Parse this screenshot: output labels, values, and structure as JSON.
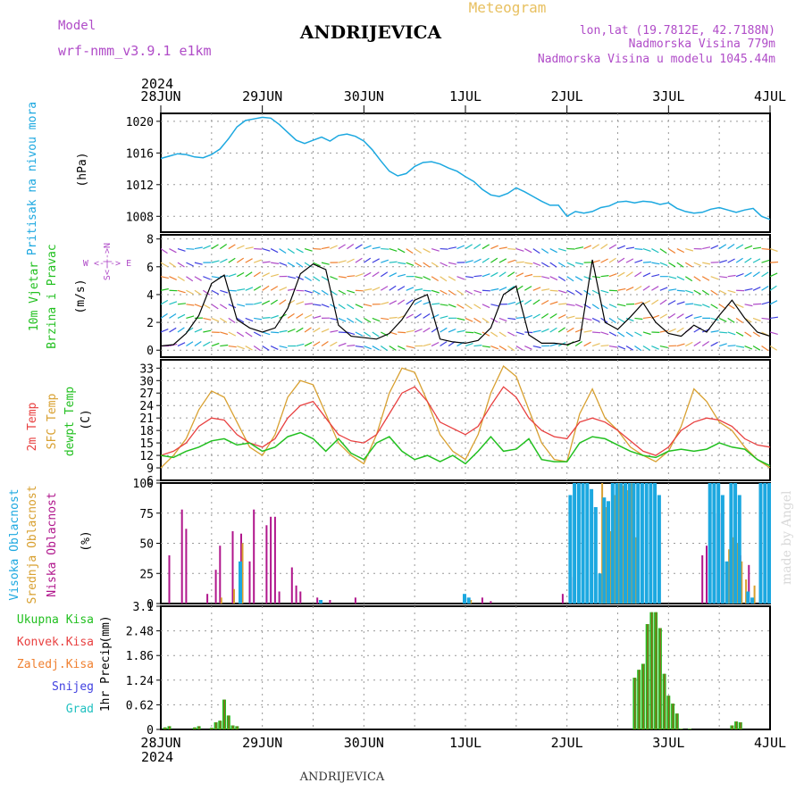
{
  "header": {
    "model_label": "Model",
    "model_name": "wrf-nmm_v3.9.1 e1km",
    "station": "ANDRIJEVICA",
    "meteogram": "Meteogram",
    "coords": "lon,lat (19.7812E, 42.7188N)",
    "elevation": "Nadmorska Visina 779m",
    "model_elevation": "Nadmorska Visina u modelu 1045.44m",
    "year_top": "2024",
    "year_bottom": "2024",
    "footer_station": "ANDRIJEVICA",
    "credit": "made by Angel"
  },
  "colors": {
    "pressure": "#1ca8e0",
    "wind_green": "#22c020",
    "temp2m": "#e84040",
    "sfc": "#d8a030",
    "dewpt": "#22c020",
    "cloud_high": "#1ca8e0",
    "cloud_mid": "#d8a030",
    "cloud_low": "#b0168c",
    "purple": "#b04cc8",
    "precip_total": "#22c020",
    "precip_conv": "#e84040",
    "precip_frz": "#f08030",
    "precip_snow": "#4040e0",
    "precip_grad": "#20c0c0"
  },
  "time_axis": {
    "start": "2024-06-28T00:00",
    "end": "2024-07-04T00:00",
    "ticks": [
      "28JUN",
      "29JUN",
      "30JUN",
      "1JUL",
      "2JUL",
      "3JUL",
      "4JUL"
    ]
  },
  "chart_data": [
    {
      "type": "line",
      "ylabel": "Pritisak na nivou mora",
      "units": "(hPa)",
      "yticks": [
        1008,
        1012,
        1016,
        1020
      ],
      "ylim": [
        1006,
        1021
      ],
      "series": [
        {
          "x": [
            0,
            2,
            4,
            6,
            8,
            10,
            12,
            14,
            16,
            18,
            20,
            22,
            24,
            26,
            28,
            30,
            32,
            34,
            36,
            38,
            40,
            42,
            44,
            46,
            48,
            50,
            52,
            54,
            56,
            58,
            60,
            62,
            64,
            66,
            68,
            70,
            72,
            74,
            76,
            78,
            80,
            82,
            84,
            86,
            88,
            90,
            92,
            94,
            96,
            98,
            100,
            102,
            104,
            106,
            108,
            110,
            112,
            114,
            116,
            118,
            120,
            122,
            124,
            126,
            128,
            130,
            132,
            134,
            136,
            138,
            140,
            142,
            144
          ],
          "values": [
            1015.3,
            1015.6,
            1015.9,
            1015.8,
            1015.5,
            1015.4,
            1015.8,
            1016.5,
            1017.8,
            1019.3,
            1020.1,
            1020.3,
            1020.5,
            1020.4,
            1019.6,
            1018.6,
            1017.6,
            1017.2,
            1017.6,
            1018.0,
            1017.5,
            1018.2,
            1018.4,
            1018.1,
            1017.5,
            1016.4,
            1015.0,
            1013.7,
            1013.1,
            1013.4,
            1014.3,
            1014.8,
            1014.9,
            1014.6,
            1014.1,
            1013.7,
            1013.0,
            1012.4,
            1011.4,
            1010.7,
            1010.5,
            1010.9,
            1011.6,
            1011.1,
            1010.5,
            1009.9,
            1009.4,
            1009.4,
            1008.0,
            1008.6,
            1008.4,
            1008.6,
            1009.1,
            1009.3,
            1009.8,
            1009.9,
            1009.7,
            1009.9,
            1009.8,
            1009.5,
            1009.7,
            1009.0,
            1008.6,
            1008.4,
            1008.5,
            1008.9,
            1009.1,
            1008.8,
            1008.5,
            1008.8,
            1009.0,
            1008.0,
            1007.6
          ]
        }
      ]
    },
    {
      "type": "line",
      "ylabel": "10m Vjetar",
      "ylabel2": "Brzina i Pravac",
      "units": "(m/s)",
      "compass": "W <-|-> E",
      "compass_ns": "S<-|->N",
      "yticks": [
        0,
        2,
        4,
        6,
        8
      ],
      "ylim": [
        -0.5,
        8.3
      ],
      "series": [
        {
          "x": [
            0,
            3,
            6,
            9,
            12,
            15,
            18,
            21,
            24,
            27,
            30,
            33,
            36,
            39,
            42,
            45,
            48,
            51,
            54,
            57,
            60,
            63,
            66,
            69,
            72,
            75,
            78,
            81,
            84,
            87,
            90,
            93,
            96,
            99,
            102,
            105,
            108,
            111,
            114,
            117,
            120,
            123,
            126,
            129,
            132,
            135,
            138,
            141,
            144
          ],
          "values": [
            0.3,
            0.4,
            1.2,
            2.5,
            4.8,
            5.4,
            2.2,
            1.6,
            1.3,
            1.6,
            3.0,
            5.5,
            6.2,
            5.8,
            1.8,
            1.0,
            0.9,
            0.8,
            1.2,
            2.2,
            3.6,
            4.0,
            0.8,
            0.6,
            0.5,
            0.7,
            1.6,
            4.0,
            4.6,
            1.1,
            0.5,
            0.5,
            0.4,
            0.7,
            6.5,
            2.0,
            1.5,
            2.4,
            3.4,
            2.0,
            1.2,
            1.0,
            1.8,
            1.3,
            2.5,
            3.6,
            2.3,
            1.3,
            1.0
          ]
        }
      ]
    },
    {
      "type": "line",
      "ylabel": "2m Temp",
      "ylabel2": "SFC Temp",
      "ylabel3": "dewpt Temp",
      "units": "(C)",
      "yticks": [
        6,
        9,
        12,
        15,
        18,
        21,
        24,
        27,
        30,
        33
      ],
      "ylim": [
        6,
        35
      ],
      "series": [
        {
          "name": "2m Temp",
          "x": [
            0,
            3,
            6,
            9,
            12,
            15,
            18,
            21,
            24,
            27,
            30,
            33,
            36,
            39,
            42,
            45,
            48,
            51,
            54,
            57,
            60,
            63,
            66,
            69,
            72,
            75,
            78,
            81,
            84,
            87,
            90,
            93,
            96,
            99,
            102,
            105,
            108,
            111,
            114,
            117,
            120,
            123,
            126,
            129,
            132,
            135,
            138,
            141,
            144
          ],
          "values": [
            12,
            13,
            15,
            19,
            21,
            20.5,
            17,
            15,
            14,
            16,
            21,
            24,
            25,
            21,
            17,
            15.5,
            15,
            17,
            22,
            27,
            28.5,
            25,
            20,
            18.5,
            17,
            19,
            24,
            28.5,
            26,
            21,
            18,
            16.5,
            16,
            20,
            21,
            20,
            18,
            15.5,
            13,
            12,
            14,
            18,
            20,
            21,
            20.5,
            19,
            16,
            14.5,
            14
          ]
        },
        {
          "name": "SFC Temp",
          "x": [
            0,
            3,
            6,
            9,
            12,
            15,
            18,
            21,
            24,
            27,
            30,
            33,
            36,
            39,
            42,
            45,
            48,
            51,
            54,
            57,
            60,
            63,
            66,
            69,
            72,
            75,
            78,
            81,
            84,
            87,
            90,
            93,
            96,
            99,
            102,
            105,
            108,
            111,
            114,
            117,
            120,
            123,
            126,
            129,
            132,
            135,
            138,
            141,
            144
          ],
          "values": [
            9,
            12,
            16,
            23,
            27.5,
            26,
            20,
            14,
            12,
            17,
            26,
            30,
            29,
            22,
            15,
            12,
            10,
            17,
            27,
            33,
            32,
            25,
            17,
            13,
            11,
            17,
            27,
            33.5,
            31,
            23,
            15,
            11,
            10.5,
            22,
            28,
            21,
            18,
            14,
            12,
            10.5,
            13,
            19,
            28,
            25,
            20,
            18,
            14,
            11,
            9
          ]
        },
        {
          "name": "dewpt Temp",
          "x": [
            0,
            3,
            6,
            9,
            12,
            15,
            18,
            21,
            24,
            27,
            30,
            33,
            36,
            39,
            42,
            45,
            48,
            51,
            54,
            57,
            60,
            63,
            66,
            69,
            72,
            75,
            78,
            81,
            84,
            87,
            90,
            93,
            96,
            99,
            102,
            105,
            108,
            111,
            114,
            117,
            120,
            123,
            126,
            129,
            132,
            135,
            138,
            141,
            144
          ],
          "values": [
            12,
            11.5,
            13,
            14,
            15.5,
            16,
            14.5,
            15,
            13,
            14,
            16.5,
            17.5,
            16,
            13,
            16,
            12.5,
            11,
            15,
            16.5,
            13,
            11,
            12,
            10.5,
            12,
            10,
            13,
            16.5,
            13,
            13.5,
            16,
            11,
            10.5,
            10.5,
            15,
            16.5,
            16,
            14.5,
            13,
            12,
            11.5,
            13,
            13.5,
            13,
            13.5,
            15,
            14,
            13.5,
            11,
            9.5
          ]
        }
      ]
    },
    {
      "type": "bar",
      "ylabel": "Visoka Oblacnost",
      "ylabel2": "Srednja Oblacnost",
      "ylabel3": "Niska Oblacnost",
      "units": "(%)",
      "yticks": [
        0,
        25,
        50,
        75,
        100
      ],
      "ylim": [
        0,
        100
      ],
      "series": [
        {
          "name": "Niska Oblacnost",
          "x": [
            2,
            5,
            6,
            11,
            13,
            14,
            17,
            19,
            21,
            22,
            25,
            26,
            27,
            28,
            31,
            32,
            33,
            37,
            40,
            46,
            76,
            78,
            95,
            97,
            128,
            129,
            131,
            132,
            135,
            137,
            139,
            142
          ],
          "values": [
            40,
            78,
            62,
            8,
            28,
            48,
            60,
            58,
            35,
            78,
            65,
            72,
            72,
            10,
            30,
            15,
            10,
            5,
            3,
            5,
            5,
            2,
            8,
            22,
            40,
            48,
            75,
            75,
            55,
            40,
            32,
            8
          ]
        },
        {
          "name": "Srednja Oblacnost",
          "x": [
            14,
            17,
            19,
            73,
            104,
            105,
            106,
            107,
            108,
            109,
            110,
            111,
            112,
            134,
            135,
            136,
            137,
            138,
            140
          ],
          "values": [
            5,
            12,
            50,
            3,
            100,
            80,
            60,
            90,
            100,
            98,
            94,
            100,
            55,
            45,
            55,
            50,
            35,
            20,
            15
          ]
        },
        {
          "name": "Visoka Oblacnost",
          "x": [
            19,
            38,
            72,
            73,
            97,
            98,
            99,
            100,
            101,
            102,
            103,
            104,
            105,
            106,
            107,
            108,
            109,
            110,
            111,
            112,
            113,
            114,
            115,
            116,
            117,
            118,
            130,
            131,
            132,
            133,
            134,
            135,
            136,
            137,
            139,
            140,
            142,
            143,
            144
          ],
          "values": [
            35,
            3,
            8,
            5,
            90,
            100,
            100,
            100,
            100,
            95,
            80,
            25,
            88,
            85,
            100,
            100,
            100,
            100,
            100,
            100,
            100,
            100,
            100,
            100,
            100,
            90,
            100,
            100,
            100,
            90,
            35,
            100,
            100,
            90,
            10,
            5,
            100,
            100,
            100
          ]
        }
      ]
    },
    {
      "type": "bar",
      "ylabel": "1hr Precip",
      "units": "(mm)",
      "yticks": [
        0,
        0.62,
        1.24,
        1.86,
        2.48,
        3.1
      ],
      "ylim": [
        0,
        3.1
      ],
      "legend": [
        "Ukupna Kisa",
        "Konvek.Kisa",
        "Zaledj.Kisa",
        "Snijeg",
        "Grad"
      ],
      "series": [
        {
          "name": "Ukupna Kisa",
          "x": [
            1,
            2,
            8,
            9,
            12,
            13,
            14,
            15,
            16,
            17,
            18,
            112,
            113,
            114,
            115,
            116,
            117,
            118,
            119,
            120,
            121,
            122,
            123,
            125,
            135,
            136,
            137
          ],
          "values": [
            0.05,
            0.08,
            0.05,
            0.08,
            0.04,
            0.18,
            0.22,
            0.75,
            0.35,
            0.1,
            0.08,
            1.3,
            1.5,
            1.65,
            2.65,
            2.95,
            2.95,
            2.55,
            1.4,
            0.85,
            0.65,
            0.4,
            0.02,
            0.02,
            0.1,
            0.2,
            0.18
          ]
        }
      ]
    }
  ]
}
